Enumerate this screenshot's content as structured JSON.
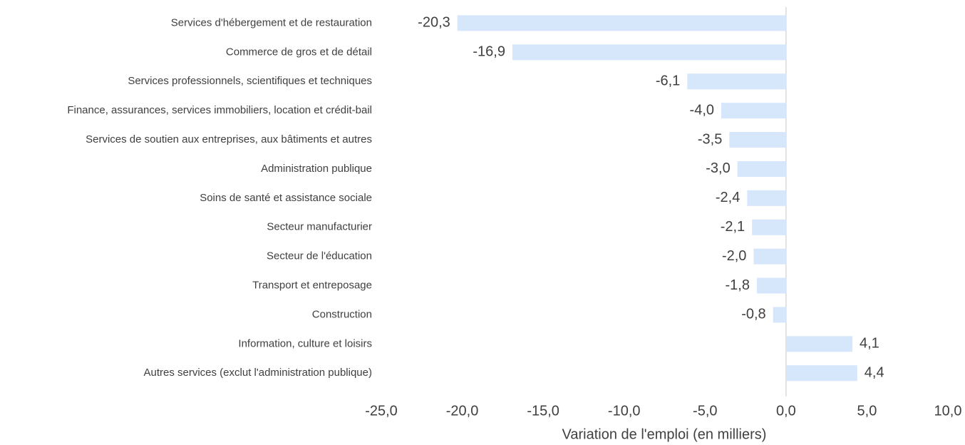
{
  "chart_data": {
    "type": "bar",
    "orientation": "horizontal",
    "x_label": "Variation de l'emploi (en milliers)",
    "categories": [
      "Services d'hébergement et de restauration",
      "Commerce de gros et de détail",
      "Services professionnels, scientifiques et techniques",
      "Finance, assurances, services immobiliers, location et crédit-bail",
      "Services de soutien aux entreprises, aux bâtiments et autres",
      "Administration publique",
      "Soins de santé et assistance sociale",
      "Secteur manufacturier",
      "Secteur de l'éducation",
      "Transport et entreposage",
      "Construction",
      "Information, culture et loisirs",
      "Autres services (exclut l'administration publique)"
    ],
    "values": [
      -20.3,
      -16.9,
      -6.1,
      -4.0,
      -3.5,
      -3.0,
      -2.4,
      -2.1,
      -2.0,
      -1.8,
      -0.8,
      4.1,
      4.4
    ],
    "value_labels": [
      "-20,3",
      "-16,9",
      "-6,1",
      "-4,0",
      "-3,5",
      "-3,0",
      "-2,4",
      "-2,1",
      "-2,0",
      "-1,8",
      "-0,8",
      "4,1",
      "4,4"
    ],
    "color": "#d6e6fb",
    "xlim": [
      -25,
      10
    ],
    "xticks": [
      {
        "value": -25,
        "label": "-25,0"
      },
      {
        "value": -20,
        "label": "-20,0"
      },
      {
        "value": -15,
        "label": "-15,0"
      },
      {
        "value": -10,
        "label": "-10,0"
      },
      {
        "value": -5,
        "label": "-5,0"
      },
      {
        "value": 0,
        "label": "0,0"
      },
      {
        "value": 5,
        "label": "5,0"
      },
      {
        "value": 10,
        "label": "10,0"
      }
    ],
    "grid": false
  }
}
